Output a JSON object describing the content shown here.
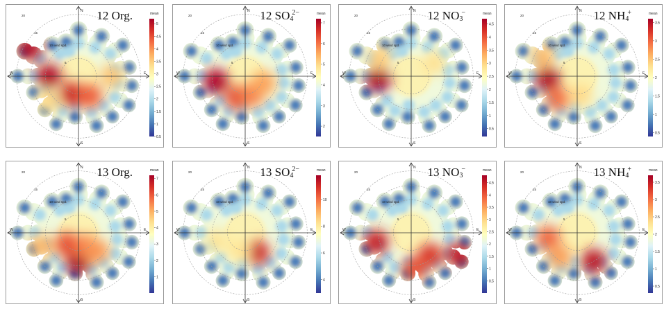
{
  "legend_label": "mean",
  "colormap": [
    "#313695",
    "#4575b4",
    "#74add1",
    "#abd9e9",
    "#e0f3f8",
    "#ffffbf",
    "#fee090",
    "#fdae61",
    "#f46d43",
    "#d73027",
    "#a50026"
  ],
  "chart_data": [
    {
      "type": "heatmap",
      "subtype": "polar-plot",
      "id": "p12org",
      "title": {
        "year": "12",
        "species": "Org.",
        "sub": "",
        "sup": ""
      },
      "compass": {
        "n": "N",
        "s": "S",
        "e": "E",
        "w": "W"
      },
      "radial_labels": [
        "20",
        "15",
        "10 wind spd.",
        "5"
      ],
      "scale": {
        "min": 0.5,
        "max": 5.2,
        "ticks": [
          "0.5",
          "1",
          "1.5",
          "2",
          "2.5",
          "3",
          "3.5",
          "4",
          "4.5",
          "5"
        ]
      },
      "features": [
        {
          "angle": 270,
          "r": 0.45,
          "value": 5.0
        },
        {
          "angle": 200,
          "r": 0.3,
          "value": 4.8
        },
        {
          "angle": 150,
          "r": 0.35,
          "value": 4.3
        },
        {
          "angle": 300,
          "r": 0.85,
          "value": 5.0
        },
        {
          "angle": 90,
          "r": 0.5,
          "value": 3.5
        },
        {
          "angle": 230,
          "r": 0.6,
          "value": 3.3
        }
      ]
    },
    {
      "type": "heatmap",
      "subtype": "polar-plot",
      "id": "p12so4",
      "title": {
        "year": "12",
        "species": "SO",
        "sub": "4",
        "sup": "2−"
      },
      "compass": {
        "n": "N",
        "s": "S",
        "e": "E",
        "w": "W"
      },
      "radial_labels": [
        "20",
        "15",
        "10 wind spd.",
        "5"
      ],
      "scale": {
        "min": 1.5,
        "max": 7.2,
        "ticks": [
          "2",
          "3",
          "4",
          "5",
          "6",
          "7"
        ]
      },
      "features": [
        {
          "angle": 260,
          "r": 0.45,
          "value": 7.0
        },
        {
          "angle": 200,
          "r": 0.35,
          "value": 6.3
        },
        {
          "angle": 160,
          "r": 0.3,
          "value": 5.8
        },
        {
          "angle": 110,
          "r": 0.3,
          "value": 5.5
        }
      ]
    },
    {
      "type": "heatmap",
      "subtype": "polar-plot",
      "id": "p12no3",
      "title": {
        "year": "12",
        "species": "NO",
        "sub": "3",
        "sup": "−"
      },
      "compass": {
        "n": "N",
        "s": "S",
        "e": "E",
        "w": "W"
      },
      "radial_labels": [
        "20",
        "15",
        "10 wind spd.",
        "5"
      ],
      "scale": {
        "min": 0.2,
        "max": 4.7,
        "ticks": [
          "0.5",
          "1",
          "1.5",
          "2",
          "2.5",
          "3",
          "3.5",
          "4",
          "4.5"
        ]
      },
      "features": [
        {
          "angle": 265,
          "r": 0.5,
          "value": 4.6
        },
        {
          "angle": 300,
          "r": 0.55,
          "value": 3.0
        },
        {
          "angle": 60,
          "r": 0.4,
          "value": 2.8
        }
      ]
    },
    {
      "type": "heatmap",
      "subtype": "polar-plot",
      "id": "p12nh4",
      "title": {
        "year": "12",
        "species": "NH",
        "sub": "4",
        "sup": "+"
      },
      "compass": {
        "n": "N",
        "s": "S",
        "e": "E",
        "w": "W"
      },
      "radial_labels": [
        "20",
        "15",
        "10 wind spd.",
        "5"
      ],
      "scale": {
        "min": 0.4,
        "max": 3.6,
        "ticks": [
          "0.5",
          "1",
          "1.5",
          "2",
          "2.5",
          "3",
          "3.5"
        ]
      },
      "features": [
        {
          "angle": 265,
          "r": 0.45,
          "value": 3.5
        },
        {
          "angle": 220,
          "r": 0.45,
          "value": 2.9
        },
        {
          "angle": 170,
          "r": 0.3,
          "value": 2.3
        },
        {
          "angle": 300,
          "r": 0.6,
          "value": 2.5
        }
      ]
    },
    {
      "type": "heatmap",
      "subtype": "polar-plot",
      "id": "p13org",
      "title": {
        "year": "13",
        "species": "Org.",
        "sub": "",
        "sup": ""
      },
      "compass": {
        "n": "N",
        "s": "S",
        "e": "E",
        "w": "W"
      },
      "radial_labels": [
        "20",
        "15",
        "10 wind spd.",
        "5"
      ],
      "scale": {
        "min": 0,
        "max": 7.2,
        "ticks": [
          "1",
          "2",
          "3",
          "4",
          "5",
          "6",
          "7"
        ]
      },
      "features": [
        {
          "angle": 180,
          "r": 0.45,
          "value": 7.0
        },
        {
          "angle": 225,
          "r": 0.25,
          "value": 6.0
        },
        {
          "angle": 150,
          "r": 0.25,
          "value": 5.5
        },
        {
          "angle": 135,
          "r": 0.4,
          "value": 5.2
        },
        {
          "angle": 250,
          "r": 0.6,
          "value": 4.8
        }
      ]
    },
    {
      "type": "heatmap",
      "subtype": "polar-plot",
      "id": "p13so4",
      "title": {
        "year": "13",
        "species": "SO",
        "sub": "4",
        "sup": "2−"
      },
      "compass": {
        "n": "N",
        "s": "S",
        "e": "E",
        "w": "W"
      },
      "radial_labels": [
        "20",
        "15",
        "10 wind spd.",
        "5"
      ],
      "scale": {
        "min": 3,
        "max": 11.8,
        "ticks": [
          "4",
          "6",
          "8",
          "10"
        ]
      },
      "features": [
        {
          "angle": 150,
          "r": 0.35,
          "value": 11.0
        },
        {
          "angle": 200,
          "r": 0.3,
          "value": 8.0
        },
        {
          "angle": 255,
          "r": 0.45,
          "value": 8.0
        }
      ]
    },
    {
      "type": "heatmap",
      "subtype": "polar-plot",
      "id": "p13no3",
      "title": {
        "year": "13",
        "species": "NO",
        "sub": "3",
        "sup": "−"
      },
      "compass": {
        "n": "N",
        "s": "S",
        "e": "E",
        "w": "W"
      },
      "radial_labels": [
        "20",
        "15",
        "10 wind spd.",
        "5"
      ],
      "scale": {
        "min": 0,
        "max": 4.8,
        "ticks": [
          "0.5",
          "1",
          "1.5",
          "2",
          "2.5",
          "3",
          "3.5",
          "4",
          "4.5"
        ]
      },
      "features": [
        {
          "angle": 115,
          "r": 0.8,
          "value": 4.5
        },
        {
          "angle": 140,
          "r": 0.45,
          "value": 4.2
        },
        {
          "angle": 175,
          "r": 0.55,
          "value": 4.0
        },
        {
          "angle": 255,
          "r": 0.55,
          "value": 4.4
        }
      ]
    },
    {
      "type": "heatmap",
      "subtype": "polar-plot",
      "id": "p13nh4",
      "title": {
        "year": "13",
        "species": "NH",
        "sub": "4",
        "sup": "+"
      },
      "compass": {
        "n": "N",
        "s": "S",
        "e": "E",
        "w": "W"
      },
      "radial_labels": [
        "20",
        "15",
        "10 wind spd.",
        "5"
      ],
      "scale": {
        "min": 0.3,
        "max": 3.7,
        "ticks": [
          "0.5",
          "1",
          "1.5",
          "2",
          "2.5",
          "3",
          "3.5"
        ]
      },
      "features": [
        {
          "angle": 150,
          "r": 0.5,
          "value": 3.5
        },
        {
          "angle": 260,
          "r": 0.45,
          "value": 3.0
        },
        {
          "angle": 215,
          "r": 0.45,
          "value": 2.7
        }
      ]
    }
  ]
}
